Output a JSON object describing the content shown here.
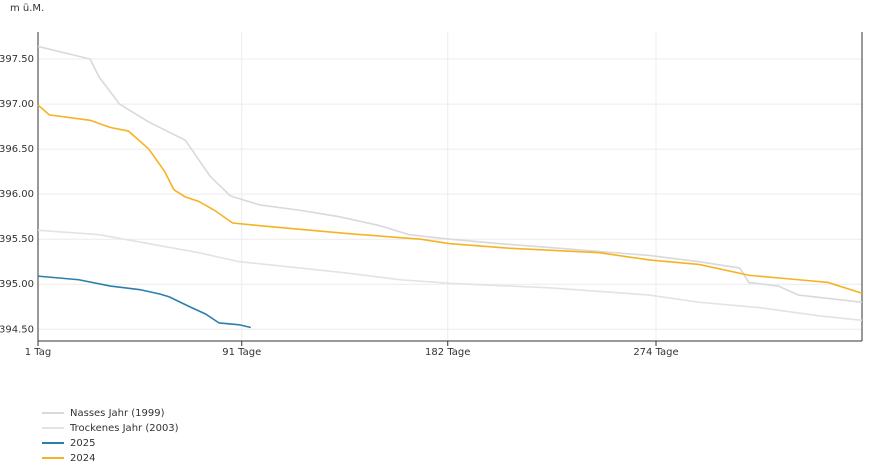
{
  "chart_data": {
    "type": "line",
    "y_label": "m ü.M.",
    "xlim": [
      1,
      365
    ],
    "ylim": [
      394.37,
      397.8
    ],
    "xticks": [
      {
        "value": 1,
        "label": "1 Tag"
      },
      {
        "value": 91,
        "label": "91 Tage"
      },
      {
        "value": 182,
        "label": "182 Tage"
      },
      {
        "value": 274,
        "label": "274 Tage"
      }
    ],
    "yticks": [
      {
        "value": 394.5,
        "label": "394.50"
      },
      {
        "value": 395,
        "label": "395.00"
      },
      {
        "value": 395.5,
        "label": "395.50"
      },
      {
        "value": 396,
        "label": "396.00"
      },
      {
        "value": 396.5,
        "label": "396.50"
      },
      {
        "value": 397,
        "label": "397.00"
      },
      {
        "value": 397.5,
        "label": "397.50"
      }
    ],
    "grid": true,
    "legend": "bottom-left",
    "series": [
      {
        "name": "Nasses Jahr (1999)",
        "color": "#d9d9d9",
        "x": [
          1,
          24,
          28,
          37,
          50,
          66,
          77,
          86,
          99,
          117,
          134,
          152,
          165,
          183,
          205,
          231,
          271,
          293,
          311,
          315,
          328,
          337,
          365
        ],
        "values": [
          397.64,
          397.5,
          397.3,
          397.0,
          396.8,
          396.6,
          396.2,
          395.98,
          395.88,
          395.82,
          395.75,
          395.65,
          395.55,
          395.5,
          395.45,
          395.4,
          395.32,
          395.25,
          395.18,
          395.02,
          394.98,
          394.88,
          394.8
        ]
      },
      {
        "name": "Trockenes Jahr (2003)",
        "color": "#e3e3e3",
        "x": [
          1,
          28,
          50,
          72,
          90,
          117,
          139,
          161,
          183,
          227,
          271,
          293,
          320,
          346,
          365
        ],
        "values": [
          395.6,
          395.55,
          395.45,
          395.35,
          395.25,
          395.18,
          395.12,
          395.05,
          395.01,
          394.96,
          394.88,
          394.8,
          394.74,
          394.65,
          394.6
        ]
      },
      {
        "name": "2025",
        "color": "#2b7fac",
        "x": [
          1,
          19,
          33,
          46,
          55,
          59,
          68,
          75,
          81,
          90,
          95
        ],
        "values": [
          395.09,
          395.05,
          394.98,
          394.94,
          394.89,
          394.86,
          394.75,
          394.67,
          394.57,
          394.55,
          394.52
        ]
      },
      {
        "name": "2024",
        "color": "#f5b323",
        "x": [
          1,
          6,
          24,
          33,
          41,
          50,
          57,
          61,
          66,
          72,
          79,
          87,
          99,
          139,
          170,
          183,
          209,
          249,
          271,
          293,
          315,
          337,
          350,
          365
        ],
        "values": [
          396.99,
          396.88,
          396.82,
          396.74,
          396.7,
          396.5,
          396.25,
          396.05,
          395.97,
          395.92,
          395.82,
          395.68,
          395.65,
          395.56,
          395.5,
          395.45,
          395.4,
          395.35,
          395.27,
          395.22,
          395.1,
          395.05,
          395.02,
          394.9
        ]
      }
    ]
  }
}
